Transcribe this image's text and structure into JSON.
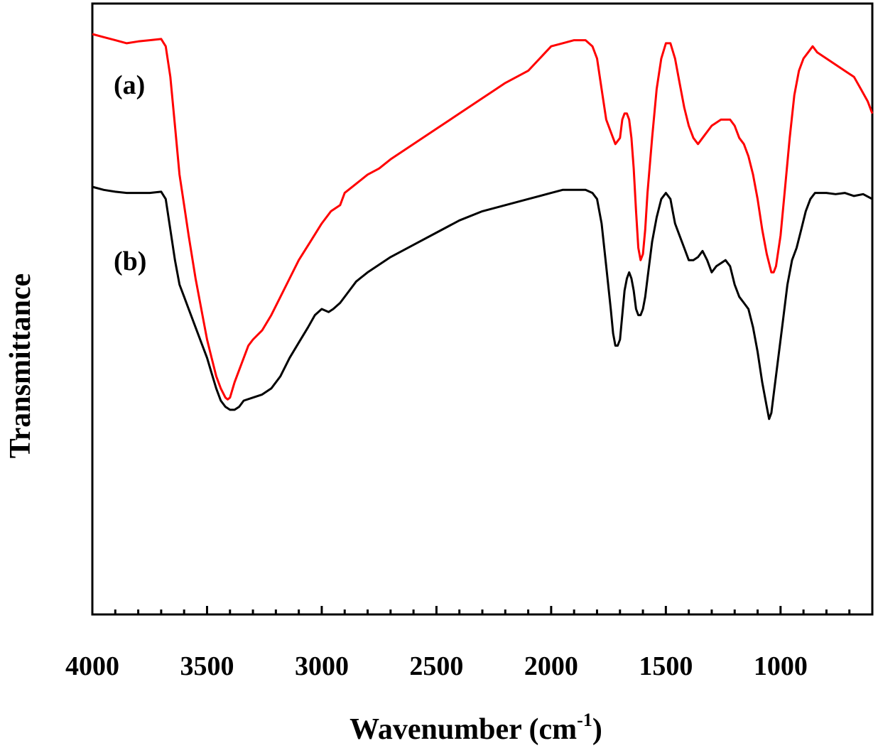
{
  "chart_data": {
    "type": "line",
    "xlabel": "Wavenumber (cm",
    "xlabel_sup": "-1",
    "xlabel_close": ")",
    "ylabel": "Transmittance",
    "xlim": [
      4000,
      600
    ],
    "ylim": [
      0,
      100
    ],
    "x_ticks": [
      4000,
      3500,
      3000,
      2500,
      2000,
      1500,
      1000
    ],
    "x_minor_step": 100,
    "y_tick_labels": false,
    "grid": false,
    "series": [
      {
        "label": "(a)",
        "color": "#ff0000",
        "points": [
          [
            4000,
            95
          ],
          [
            3950,
            94.5
          ],
          [
            3900,
            94
          ],
          [
            3850,
            93.5
          ],
          [
            3800,
            93.8
          ],
          [
            3750,
            94
          ],
          [
            3700,
            94.2
          ],
          [
            3680,
            93
          ],
          [
            3660,
            88
          ],
          [
            3640,
            80
          ],
          [
            3620,
            72
          ],
          [
            3600,
            67
          ],
          [
            3580,
            62
          ],
          [
            3550,
            55
          ],
          [
            3520,
            49
          ],
          [
            3500,
            45
          ],
          [
            3480,
            42
          ],
          [
            3460,
            39
          ],
          [
            3440,
            37
          ],
          [
            3420,
            35.5
          ],
          [
            3410,
            35.2
          ],
          [
            3400,
            35.5
          ],
          [
            3380,
            38
          ],
          [
            3350,
            41
          ],
          [
            3320,
            44
          ],
          [
            3300,
            45
          ],
          [
            3260,
            46.5
          ],
          [
            3220,
            49
          ],
          [
            3180,
            52
          ],
          [
            3140,
            55
          ],
          [
            3100,
            58
          ],
          [
            3050,
            61
          ],
          [
            3000,
            64
          ],
          [
            2960,
            66
          ],
          [
            2920,
            67
          ],
          [
            2900,
            69
          ],
          [
            2850,
            70.5
          ],
          [
            2800,
            72
          ],
          [
            2750,
            73
          ],
          [
            2700,
            74.5
          ],
          [
            2600,
            77
          ],
          [
            2500,
            79.5
          ],
          [
            2400,
            82
          ],
          [
            2300,
            84.5
          ],
          [
            2200,
            87
          ],
          [
            2100,
            89
          ],
          [
            2000,
            93
          ],
          [
            1950,
            93.5
          ],
          [
            1900,
            94
          ],
          [
            1850,
            94
          ],
          [
            1820,
            93
          ],
          [
            1800,
            91
          ],
          [
            1780,
            86
          ],
          [
            1760,
            81
          ],
          [
            1740,
            79
          ],
          [
            1720,
            77
          ],
          [
            1700,
            78
          ],
          [
            1690,
            81
          ],
          [
            1680,
            82
          ],
          [
            1670,
            82
          ],
          [
            1660,
            81
          ],
          [
            1650,
            78
          ],
          [
            1640,
            73
          ],
          [
            1630,
            66
          ],
          [
            1620,
            60
          ],
          [
            1610,
            58
          ],
          [
            1600,
            59
          ],
          [
            1590,
            63
          ],
          [
            1580,
            69
          ],
          [
            1560,
            78
          ],
          [
            1540,
            86
          ],
          [
            1520,
            91
          ],
          [
            1500,
            93.5
          ],
          [
            1480,
            93.5
          ],
          [
            1460,
            91
          ],
          [
            1440,
            87
          ],
          [
            1420,
            83
          ],
          [
            1400,
            80
          ],
          [
            1380,
            78
          ],
          [
            1360,
            77
          ],
          [
            1340,
            78
          ],
          [
            1300,
            80
          ],
          [
            1260,
            81
          ],
          [
            1220,
            81
          ],
          [
            1200,
            80
          ],
          [
            1180,
            78
          ],
          [
            1160,
            77
          ],
          [
            1140,
            75
          ],
          [
            1120,
            72
          ],
          [
            1100,
            68
          ],
          [
            1080,
            63
          ],
          [
            1060,
            59
          ],
          [
            1040,
            56
          ],
          [
            1030,
            56
          ],
          [
            1020,
            57
          ],
          [
            1000,
            62
          ],
          [
            980,
            70
          ],
          [
            960,
            78
          ],
          [
            940,
            85
          ],
          [
            920,
            89
          ],
          [
            900,
            91
          ],
          [
            880,
            92
          ],
          [
            860,
            93
          ],
          [
            840,
            92
          ],
          [
            820,
            91.5
          ],
          [
            800,
            91
          ],
          [
            760,
            90
          ],
          [
            720,
            89
          ],
          [
            680,
            88
          ],
          [
            650,
            86
          ],
          [
            620,
            84
          ],
          [
            600,
            82
          ]
        ]
      },
      {
        "label": "(b)",
        "color": "#000000",
        "points": [
          [
            4000,
            70
          ],
          [
            3950,
            69.5
          ],
          [
            3900,
            69.2
          ],
          [
            3850,
            69
          ],
          [
            3800,
            69
          ],
          [
            3750,
            69
          ],
          [
            3700,
            69.2
          ],
          [
            3680,
            68
          ],
          [
            3660,
            63
          ],
          [
            3640,
            58
          ],
          [
            3620,
            54
          ],
          [
            3600,
            52
          ],
          [
            3580,
            50
          ],
          [
            3550,
            47
          ],
          [
            3520,
            44
          ],
          [
            3500,
            42
          ],
          [
            3480,
            39.5
          ],
          [
            3460,
            37
          ],
          [
            3440,
            35
          ],
          [
            3420,
            34
          ],
          [
            3400,
            33.5
          ],
          [
            3380,
            33.5
          ],
          [
            3360,
            34
          ],
          [
            3340,
            35
          ],
          [
            3300,
            35.5
          ],
          [
            3260,
            36
          ],
          [
            3220,
            37
          ],
          [
            3180,
            39
          ],
          [
            3140,
            42
          ],
          [
            3100,
            44.5
          ],
          [
            3060,
            47
          ],
          [
            3030,
            49
          ],
          [
            3000,
            50
          ],
          [
            2970,
            49.5
          ],
          [
            2950,
            50
          ],
          [
            2920,
            51
          ],
          [
            2890,
            52.5
          ],
          [
            2850,
            54.5
          ],
          [
            2800,
            56
          ],
          [
            2700,
            58.5
          ],
          [
            2600,
            60.5
          ],
          [
            2500,
            62.5
          ],
          [
            2400,
            64.5
          ],
          [
            2300,
            66
          ],
          [
            2200,
            67
          ],
          [
            2100,
            68
          ],
          [
            2000,
            69
          ],
          [
            1950,
            69.5
          ],
          [
            1900,
            69.5
          ],
          [
            1850,
            69.5
          ],
          [
            1820,
            69
          ],
          [
            1800,
            68
          ],
          [
            1780,
            64
          ],
          [
            1760,
            57
          ],
          [
            1740,
            50
          ],
          [
            1730,
            46
          ],
          [
            1720,
            44
          ],
          [
            1710,
            44
          ],
          [
            1700,
            45
          ],
          [
            1690,
            49
          ],
          [
            1680,
            53
          ],
          [
            1670,
            55
          ],
          [
            1660,
            56
          ],
          [
            1650,
            55
          ],
          [
            1640,
            53
          ],
          [
            1630,
            50
          ],
          [
            1620,
            49
          ],
          [
            1610,
            49
          ],
          [
            1600,
            50
          ],
          [
            1590,
            52
          ],
          [
            1580,
            55
          ],
          [
            1560,
            61
          ],
          [
            1540,
            65
          ],
          [
            1520,
            68
          ],
          [
            1500,
            69
          ],
          [
            1480,
            68
          ],
          [
            1470,
            66
          ],
          [
            1460,
            64
          ],
          [
            1440,
            62
          ],
          [
            1420,
            60
          ],
          [
            1400,
            58
          ],
          [
            1380,
            58
          ],
          [
            1360,
            58.5
          ],
          [
            1340,
            59.5
          ],
          [
            1320,
            58
          ],
          [
            1300,
            56
          ],
          [
            1280,
            57
          ],
          [
            1260,
            57.5
          ],
          [
            1240,
            58
          ],
          [
            1220,
            57
          ],
          [
            1200,
            54
          ],
          [
            1180,
            52
          ],
          [
            1160,
            51
          ],
          [
            1140,
            50
          ],
          [
            1120,
            47
          ],
          [
            1100,
            43
          ],
          [
            1080,
            38
          ],
          [
            1060,
            34
          ],
          [
            1050,
            32
          ],
          [
            1040,
            33
          ],
          [
            1030,
            36
          ],
          [
            1010,
            42
          ],
          [
            990,
            48
          ],
          [
            970,
            54
          ],
          [
            950,
            58
          ],
          [
            930,
            60
          ],
          [
            910,
            63
          ],
          [
            890,
            66
          ],
          [
            870,
            68
          ],
          [
            850,
            69
          ],
          [
            830,
            69
          ],
          [
            800,
            69
          ],
          [
            760,
            68.8
          ],
          [
            720,
            69
          ],
          [
            680,
            68.5
          ],
          [
            640,
            68.8
          ],
          [
            600,
            68
          ]
        ]
      }
    ]
  }
}
